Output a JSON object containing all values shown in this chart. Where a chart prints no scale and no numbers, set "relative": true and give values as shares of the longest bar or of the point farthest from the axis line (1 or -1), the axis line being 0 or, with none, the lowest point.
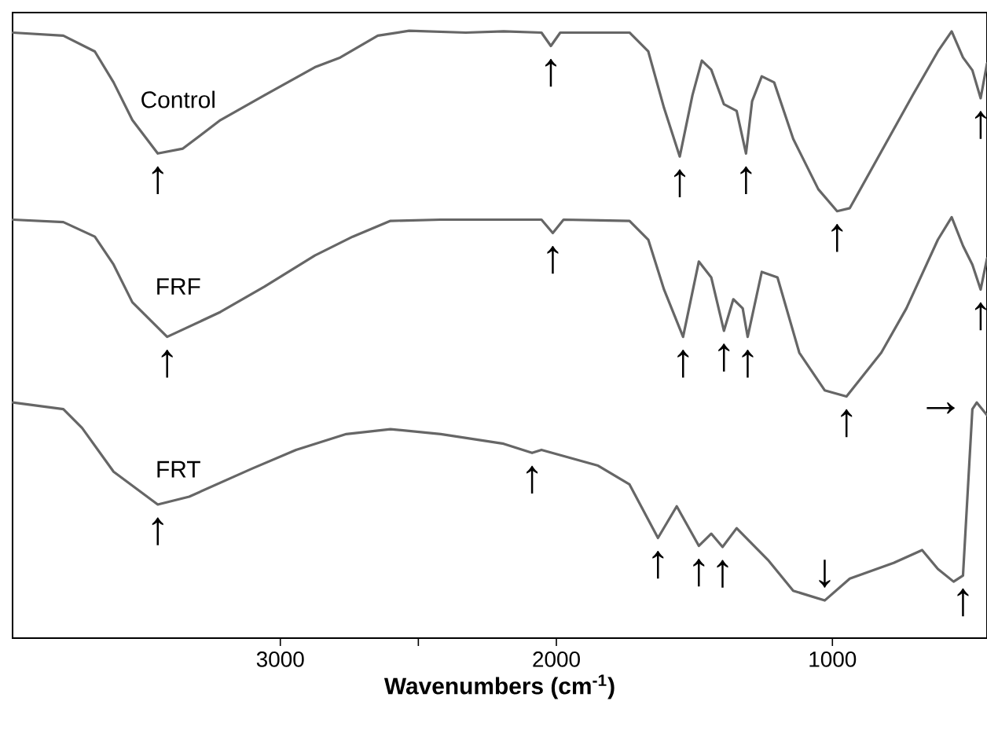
{
  "chart_data": {
    "type": "line",
    "relative": true,
    "xlabel": "Wavenumbers (cm$^{-1}$)",
    "xlim": [
      3970,
      440
    ],
    "xticks": [
      3000,
      2000,
      1000,
      {
        "value": 2500,
        "label": null
      }
    ],
    "x": [
      3969,
      3786,
      3672,
      3604,
      3536,
      3444,
      3353,
      3217,
      3057,
      2875,
      2783,
      2647,
      2533,
      2328,
      2191,
      2054,
      2020,
      1986,
      1735,
      1667,
      1610,
      1553,
      1507,
      1473,
      1439,
      1393,
      1347,
      1313,
      1291,
      1256,
      1211,
      1142,
      1051,
      983,
      937,
      823,
      709,
      618,
      568,
      527,
      493,
      463,
      440
    ],
    "series": [
      {
        "name": "Control",
        "color": "#666666",
        "values": [
          0.997,
          0.992,
          0.966,
          0.915,
          0.853,
          0.798,
          0.806,
          0.853,
          0.894,
          0.94,
          0.956,
          0.992,
          1,
          0.997,
          0.999,
          0.997,
          0.975,
          0.997,
          0.997,
          0.966,
          0.873,
          0.793,
          0.894,
          0.951,
          0.936,
          0.879,
          0.868,
          0.798,
          0.884,
          0.925,
          0.915,
          0.822,
          0.739,
          0.703,
          0.708,
          0.801,
          0.894,
          0.966,
          0.999,
          0.956,
          0.935,
          0.889,
          0.946
        ]
      },
      {
        "name": "FRF",
        "color": "#666666",
        "x": [
          3969,
          3786,
          3672,
          3604,
          3536,
          3410,
          3217,
          3057,
          2875,
          2738,
          2601,
          2419,
          2054,
          2013,
          1974,
          1735,
          1667,
          1610,
          1541,
          1484,
          1439,
          1393,
          1359,
          1325,
          1307,
          1256,
          1199,
          1120,
          1028,
          949,
          823,
          732,
          618,
          568,
          527,
          493,
          463,
          440
        ],
        "values": [
          0.689,
          0.685,
          0.661,
          0.615,
          0.553,
          0.496,
          0.537,
          0.579,
          0.63,
          0.661,
          0.687,
          0.689,
          0.689,
          0.667,
          0.689,
          0.687,
          0.656,
          0.574,
          0.496,
          0.62,
          0.594,
          0.506,
          0.558,
          0.543,
          0.496,
          0.603,
          0.594,
          0.47,
          0.408,
          0.398,
          0.47,
          0.543,
          0.656,
          0.693,
          0.646,
          0.615,
          0.574,
          0.625
        ]
      },
      {
        "name": "FRT",
        "color": "#666666",
        "x": [
          3969,
          3786,
          3718,
          3604,
          3444,
          3330,
          3103,
          2943,
          2761,
          2601,
          2419,
          2191,
          2088,
          2054,
          1849,
          1735,
          1632,
          1564,
          1484,
          1439,
          1398,
          1347,
          1234,
          1142,
          1028,
          937,
          778,
          675,
          618,
          561,
          527,
          493,
          477,
          440
        ],
        "values": [
          0.388,
          0.377,
          0.346,
          0.274,
          0.22,
          0.233,
          0.279,
          0.31,
          0.336,
          0.344,
          0.336,
          0.32,
          0.305,
          0.31,
          0.284,
          0.253,
          0.165,
          0.217,
          0.152,
          0.172,
          0.15,
          0.181,
          0.129,
          0.078,
          0.062,
          0.098,
          0.124,
          0.145,
          0.114,
          0.093,
          0.103,
          0.377,
          0.388,
          0.367
        ]
      }
    ],
    "annotations": [
      {
        "text": "↑",
        "x": 3444,
        "y": 0.798
      },
      {
        "text": "↑",
        "x": 2020,
        "y": 0.975
      },
      {
        "text": "↑",
        "x": 1553,
        "y": 0.793
      },
      {
        "text": "↑",
        "x": 1313,
        "y": 0.798
      },
      {
        "text": "↑",
        "x": 983,
        "y": 0.703
      },
      {
        "text": "↑",
        "x": 463,
        "y": 0.889
      },
      {
        "text": "↑",
        "x": 3410,
        "y": 0.496
      },
      {
        "text": "↑",
        "x": 2013,
        "y": 0.667
      },
      {
        "text": "↑",
        "x": 1541,
        "y": 0.496
      },
      {
        "text": "↑",
        "x": 1393,
        "y": 0.506
      },
      {
        "text": "↑",
        "x": 1307,
        "y": 0.496
      },
      {
        "text": "↑",
        "x": 949,
        "y": 0.398
      },
      {
        "text": "↑",
        "x": 463,
        "y": 0.574
      },
      {
        "text": "↑",
        "x": 3444,
        "y": 0.22
      },
      {
        "text": "↑",
        "x": 2088,
        "y": 0.305
      },
      {
        "text": "↑",
        "x": 1632,
        "y": 0.165
      },
      {
        "text": "↑",
        "x": 1484,
        "y": 0.152
      },
      {
        "text": "↑",
        "x": 1398,
        "y": 0.15
      },
      {
        "text": "↓",
        "x": 1028,
        "y": 0.062
      },
      {
        "text": "↑",
        "x": 527,
        "y": 0.103
      },
      {
        "text": "→",
        "x": 493,
        "y": 0.377
      }
    ]
  }
}
